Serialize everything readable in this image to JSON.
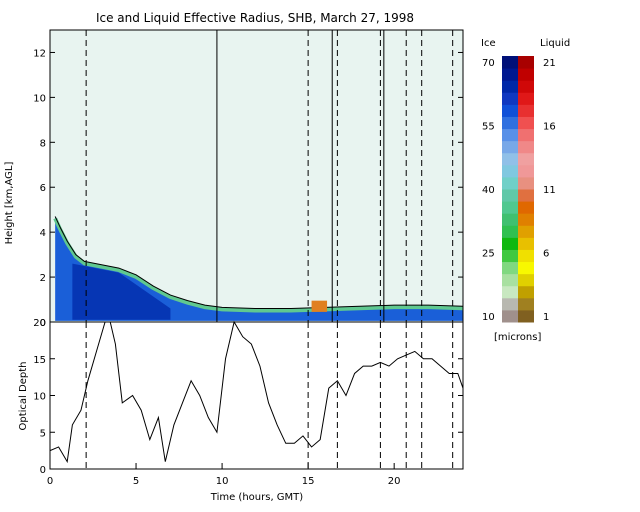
{
  "title": "Ice and Liquid Effective Radius, SHB, March 27, 1998",
  "colors": {
    "background": "#ffffff",
    "panel": "#e8f4f0",
    "axis": "#000000"
  },
  "chart_data": [
    {
      "type": "heatmap",
      "title": "Ice and Liquid Effective Radius, SHB, March 27, 1998",
      "xlabel": "",
      "ylabel": "Height [km,AGL]",
      "xlim": [
        0,
        24
      ],
      "ylim": [
        0,
        13
      ],
      "y_ticks": [
        "0",
        "2",
        "4",
        "6",
        "8",
        "10",
        "12"
      ],
      "cloud_top_km": [
        [
          0.3,
          4.7
        ],
        [
          0.6,
          4.2
        ],
        [
          1.0,
          3.6
        ],
        [
          1.5,
          3.0
        ],
        [
          2.0,
          2.7
        ],
        [
          3.0,
          2.55
        ],
        [
          4.0,
          2.4
        ],
        [
          5.0,
          2.1
        ],
        [
          6.0,
          1.6
        ],
        [
          7.0,
          1.2
        ],
        [
          8.0,
          0.95
        ],
        [
          9.0,
          0.75
        ],
        [
          10.0,
          0.65
        ],
        [
          12.0,
          0.6
        ],
        [
          14.0,
          0.6
        ],
        [
          16.0,
          0.65
        ],
        [
          18.0,
          0.7
        ],
        [
          20.0,
          0.75
        ],
        [
          22.0,
          0.75
        ],
        [
          24.0,
          0.7
        ]
      ],
      "liquid_patch": {
        "x": [
          15.2,
          16.1
        ],
        "y_km": [
          0.45,
          0.95
        ],
        "radius_microns": 9
      },
      "solid_vertical_lines": [
        9.7,
        16.4,
        19.4
      ],
      "dashed_vertical_lines": [
        2.1,
        15.0,
        16.7,
        19.2,
        20.7,
        21.6,
        23.4
      ]
    },
    {
      "type": "line",
      "xlabel": "Time (hours, GMT)",
      "ylabel": "Optical Depth",
      "xlim": [
        0,
        24
      ],
      "ylim": [
        0,
        20
      ],
      "x_ticks": [
        "0",
        "5",
        "10",
        "15",
        "20"
      ],
      "y_ticks": [
        "0",
        "5",
        "10",
        "15",
        "20"
      ],
      "series": [
        {
          "x": [
            0,
            0.5,
            1.0,
            1.3,
            1.8,
            2.2,
            2.7,
            3.2,
            3.5,
            3.8,
            4.2,
            4.8,
            5.3,
            5.8,
            6.3,
            6.7,
            7.2,
            7.7,
            8.2,
            8.7,
            9.2,
            9.7,
            10.2,
            10.7,
            11.2,
            11.7,
            12.2,
            12.7,
            13.2,
            13.7,
            14.2,
            14.7,
            15.2,
            15.7,
            16.2,
            16.7,
            17.2,
            17.7,
            18.2,
            18.7,
            19.2,
            19.7,
            20.2,
            20.7,
            21.2,
            21.7,
            22.2,
            22.7,
            23.2,
            23.7,
            24.0
          ],
          "values": [
            2.5,
            3,
            1,
            6,
            8,
            12,
            16,
            20,
            20,
            17,
            9,
            10,
            8,
            4,
            7,
            1,
            6,
            9,
            12,
            10,
            7,
            5,
            15,
            20,
            18,
            17,
            14,
            9,
            6,
            3.5,
            3.5,
            4.5,
            3,
            4,
            11,
            12,
            10,
            13,
            14,
            14,
            14.5,
            14,
            15,
            15.5,
            16,
            15,
            15,
            14,
            13,
            13,
            11
          ]
        }
      ]
    }
  ],
  "colorbar": {
    "ice_label": "Ice",
    "liquid_label": "Liquid",
    "units": "[microns]",
    "ice_ticks": [
      "70",
      "55",
      "40",
      "25",
      "10"
    ],
    "liquid_ticks": [
      "21",
      "16",
      "11",
      "6",
      "1"
    ],
    "ice_colors": [
      "#a0908c",
      "#b8b8b0",
      "#c8e8c0",
      "#a8e0a0",
      "#80d880",
      "#40c840",
      "#10b810",
      "#30c050",
      "#40c070",
      "#50c890",
      "#60c8a8",
      "#70d0c8",
      "#80c8e0",
      "#90c0e8",
      "#78a8e8",
      "#5890e8",
      "#3070e0",
      "#1050d8",
      "#1038c0",
      "#0028a8",
      "#001890",
      "#001078"
    ],
    "liquid_colors": [
      "#806020",
      "#a08020",
      "#c0a000",
      "#e0d000",
      "#f8f800",
      "#f0e000",
      "#e8c000",
      "#e0a000",
      "#e08000",
      "#e06800",
      "#e07040",
      "#e89080",
      "#f09898",
      "#f0a0a0",
      "#f08888",
      "#f07070",
      "#f05050",
      "#e83030",
      "#e01818",
      "#d00808",
      "#c00000",
      "#a80000"
    ]
  }
}
